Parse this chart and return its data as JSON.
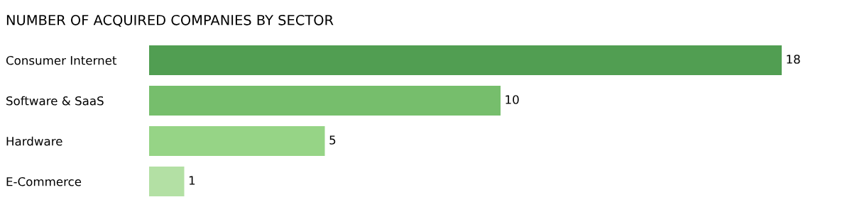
{
  "chart_data": {
    "type": "bar",
    "orientation": "horizontal",
    "title": "NUMBER OF ACQUIRED COMPANIES BY SECTOR",
    "categories": [
      "Consumer Internet",
      "Software & SaaS",
      "Hardware",
      "E-Commerce"
    ],
    "values": [
      18,
      10,
      5,
      1
    ],
    "colors": [
      "#519e52",
      "#76be6c",
      "#96d486",
      "#b3e0a4"
    ],
    "data_labels": true,
    "tick_labels": "y"
  }
}
